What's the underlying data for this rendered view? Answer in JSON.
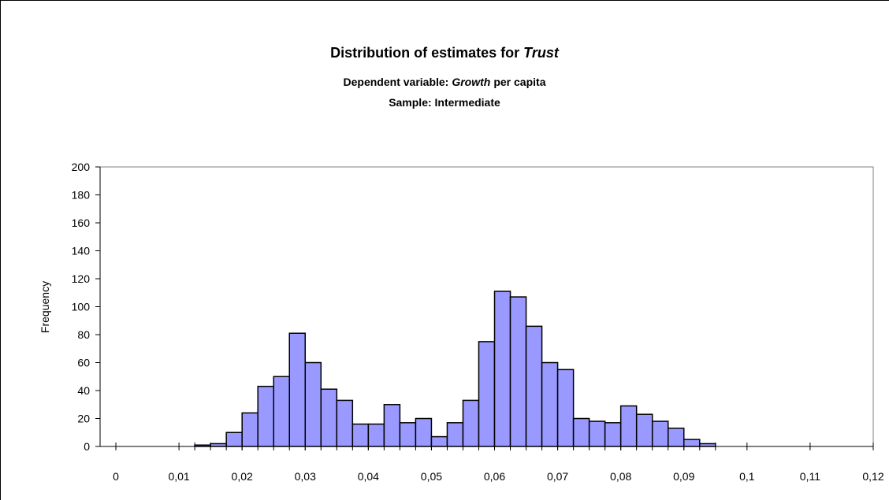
{
  "chart_data": {
    "type": "histogram",
    "title": [
      "Distribution of estimates for",
      "Trust"
    ],
    "subtitle": [
      "Dependent variable:",
      "Growth",
      "per capita"
    ],
    "sample": "Sample: Intermediate",
    "y_label": "Frequency",
    "color": "#9999ff",
    "bins": [
      0.0125,
      0.015,
      0.0175,
      0.02,
      0.0225,
      0.025,
      0.0275,
      0.03,
      0.0325,
      0.035,
      0.0375,
      0.04,
      0.0425,
      0.045,
      0.0475,
      0.05,
      0.0525,
      0.055,
      0.0575,
      0.06,
      0.0625,
      0.065,
      0.0675,
      0.07,
      0.0725,
      0.075,
      0.0775,
      0.08,
      0.0825,
      0.085,
      0.0875,
      0.09,
      0.0925,
      0.095
    ],
    "values": [
      1,
      2,
      10,
      24,
      43,
      50,
      81,
      60,
      41,
      33,
      16,
      16,
      30,
      17,
      20,
      7,
      17,
      33,
      75,
      111,
      107,
      86,
      60,
      55,
      20,
      18,
      17,
      29,
      23,
      18,
      13,
      5,
      2
    ],
    "xlim": [
      -0.0025,
      0.12
    ],
    "xticks": [
      0,
      {
        "value": 0.01,
        "label": "0,01"
      },
      {
        "value": 0.02,
        "label": "0,02"
      },
      {
        "value": 0.03,
        "label": "0,03"
      },
      {
        "value": 0.04,
        "label": "0,04"
      },
      {
        "value": 0.05,
        "label": "0,05"
      },
      {
        "value": 0.06,
        "label": "0,06"
      },
      {
        "value": 0.07,
        "label": "0,07"
      },
      {
        "value": 0.08,
        "label": "0,08"
      },
      {
        "value": 0.09,
        "label": "0,09"
      },
      {
        "value": 0.1,
        "label": "0,1"
      },
      {
        "value": 0.11,
        "label": "0,11"
      },
      {
        "value": 0.12,
        "label": "0,12"
      }
    ],
    "ylim": [
      0,
      200
    ],
    "yticks": [
      0,
      20,
      40,
      60,
      80,
      100,
      120,
      140,
      160,
      180,
      200
    ],
    "grid": false
  }
}
